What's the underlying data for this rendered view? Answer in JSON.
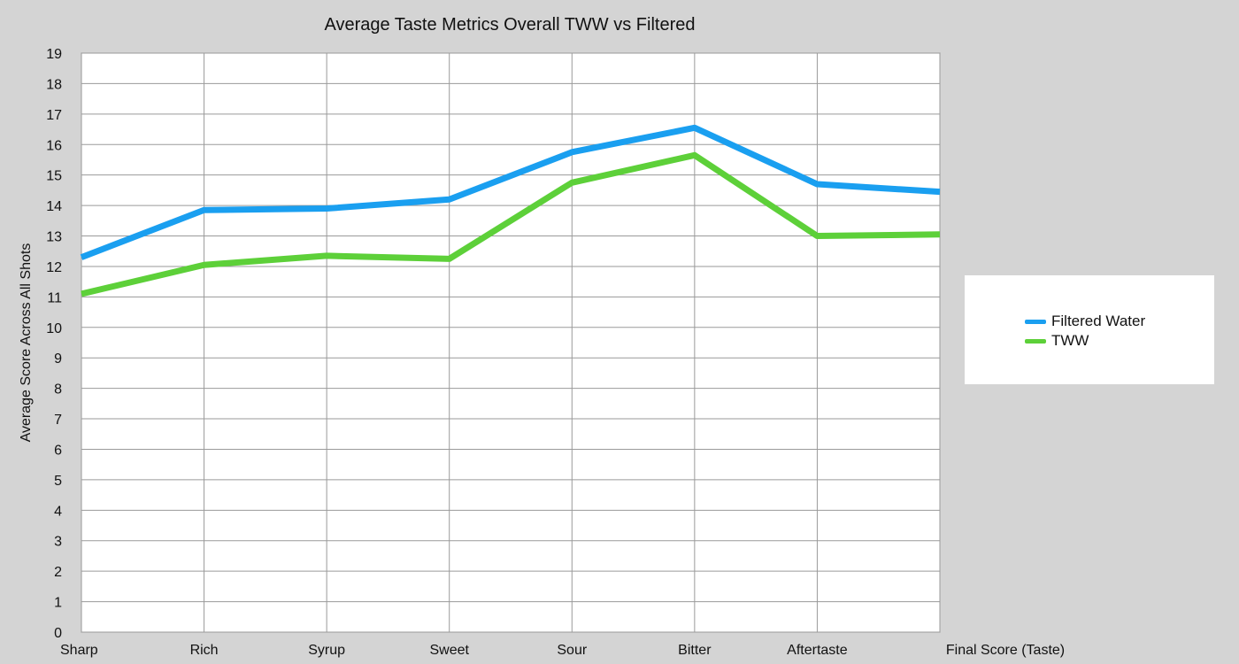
{
  "chart_data": {
    "type": "line",
    "title": "Average Taste Metrics Overall TWW vs Filtered",
    "xlabel": "",
    "ylabel": "Average Score Across All Shots",
    "categories": [
      "Sharp",
      "Rich",
      "Syrup",
      "Sweet",
      "Sour",
      "Bitter",
      "Aftertaste",
      "Final Score (Taste)"
    ],
    "ylim": [
      0,
      19
    ],
    "yticks": [
      0,
      1,
      2,
      3,
      4,
      5,
      6,
      7,
      8,
      9,
      10,
      11,
      12,
      13,
      14,
      15,
      16,
      17,
      18,
      19
    ],
    "grid": true,
    "legend_position": "right",
    "series": [
      {
        "name": "Filtered Water",
        "color": "#1a9ff0",
        "values": [
          12.3,
          13.85,
          13.9,
          14.2,
          15.75,
          16.55,
          14.7,
          14.45
        ]
      },
      {
        "name": "TWW",
        "color": "#5dd039",
        "values": [
          11.1,
          12.05,
          12.35,
          12.25,
          14.75,
          15.65,
          13.0,
          13.05
        ]
      }
    ]
  }
}
